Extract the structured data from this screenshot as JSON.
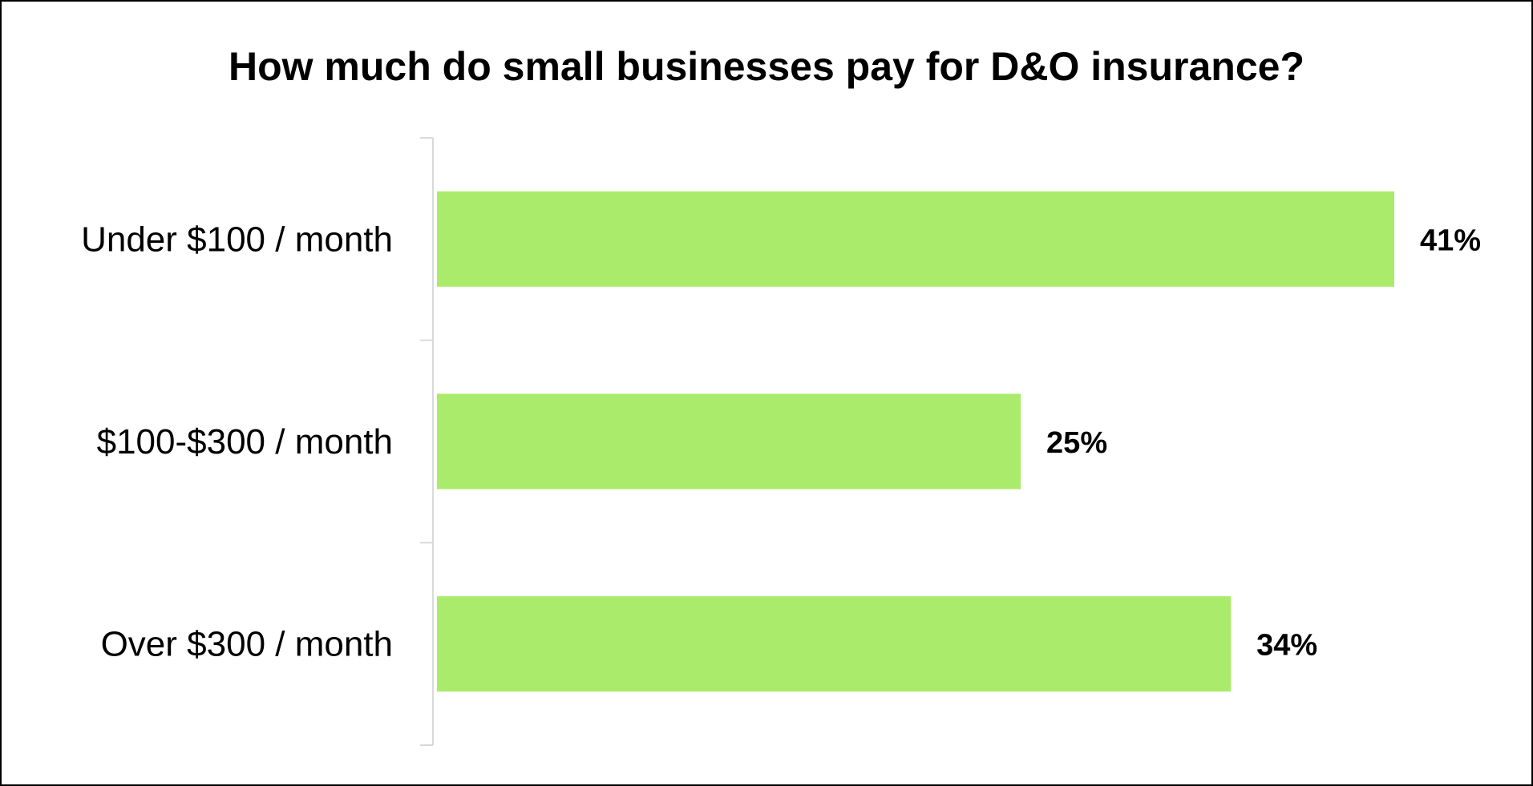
{
  "chart_data": {
    "type": "bar",
    "orientation": "horizontal",
    "title": "How much do small businesses pay for D&O insurance?",
    "categories": [
      "Under $100 / month",
      "$100-$300 / month",
      "Over $300 / month"
    ],
    "values": [
      41,
      25,
      34
    ],
    "value_labels": [
      "41%",
      "25%",
      "34%"
    ],
    "xlabel": "",
    "ylabel": "",
    "grid": false,
    "legend": "none",
    "bar_color": "#abeb6b",
    "axis_color": "#d9d9d9"
  }
}
